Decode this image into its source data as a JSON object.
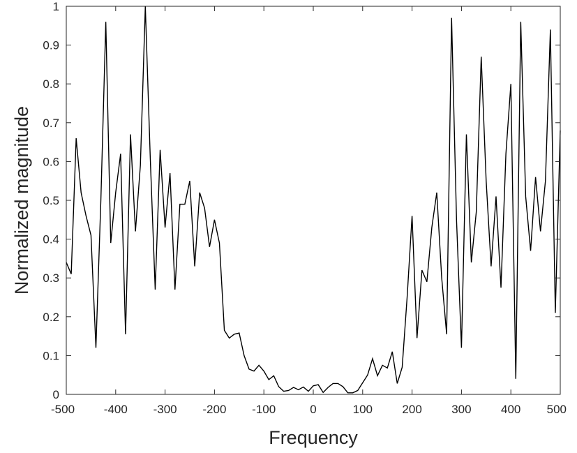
{
  "chart_data": {
    "type": "line",
    "title": "",
    "xlabel": "Frequency",
    "ylabel": "Normalized magnitude",
    "xlim": [
      -500,
      500
    ],
    "ylim": [
      0,
      1
    ],
    "xticks": [
      -500,
      -400,
      -300,
      -200,
      -100,
      0,
      100,
      200,
      300,
      400,
      500
    ],
    "yticks": [
      0,
      0.1,
      0.2,
      0.3,
      0.4,
      0.5,
      0.6,
      0.7,
      0.8,
      0.9,
      1
    ],
    "xtick_labels": [
      "-500",
      "-400",
      "-300",
      "-200",
      "-100",
      "0",
      "100",
      "200",
      "300",
      "400",
      "500"
    ],
    "ytick_labels": [
      "0",
      "0.1",
      "0.2",
      "0.3",
      "0.4",
      "0.5",
      "0.6",
      "0.7",
      "0.8",
      "0.9",
      "1"
    ],
    "grid": false,
    "line_color": "#000000",
    "series": [
      {
        "x": [
          -500,
          -490,
          -480,
          -470,
          -460,
          -450,
          -440,
          -430,
          -420,
          -410,
          -400,
          -390,
          -380,
          -370,
          -360,
          -350,
          -340,
          -330,
          -320,
          -310,
          -300,
          -290,
          -280,
          -270,
          -260,
          -250,
          -240,
          -230,
          -220,
          -210,
          -200,
          -190,
          -180,
          -170,
          -160,
          -150,
          -140,
          -130,
          -120,
          -110,
          -100,
          -90,
          -80,
          -70,
          -60,
          -50,
          -40,
          -30,
          -20,
          -10,
          0,
          10,
          20,
          30,
          40,
          50,
          60,
          70,
          80,
          90,
          100,
          110,
          120,
          130,
          140,
          150,
          160,
          170,
          180,
          190,
          200,
          210,
          220,
          230,
          240,
          250,
          260,
          270,
          280,
          290,
          300,
          310,
          320,
          330,
          340,
          350,
          360,
          370,
          380,
          390,
          400,
          410,
          420,
          430,
          440,
          450,
          460,
          470,
          480,
          490,
          500
        ],
        "values": [
          0.34,
          0.31,
          0.66,
          0.52,
          0.46,
          0.41,
          0.12,
          0.5,
          0.96,
          0.39,
          0.52,
          0.62,
          0.155,
          0.67,
          0.42,
          0.59,
          1.0,
          0.61,
          0.27,
          0.63,
          0.43,
          0.57,
          0.27,
          0.49,
          0.49,
          0.55,
          0.33,
          0.52,
          0.48,
          0.38,
          0.45,
          0.39,
          0.165,
          0.145,
          0.155,
          0.158,
          0.1,
          0.065,
          0.06,
          0.075,
          0.06,
          0.038,
          0.048,
          0.02,
          0.008,
          0.01,
          0.018,
          0.012,
          0.019,
          0.008,
          0.022,
          0.025,
          0.005,
          0.018,
          0.028,
          0.028,
          0.02,
          0.004,
          0.004,
          0.01,
          0.03,
          0.05,
          0.092,
          0.048,
          0.075,
          0.068,
          0.11,
          0.028,
          0.07,
          0.25,
          0.46,
          0.145,
          0.32,
          0.29,
          0.43,
          0.52,
          0.3,
          0.155,
          0.97,
          0.45,
          0.12,
          0.67,
          0.34,
          0.47,
          0.87,
          0.55,
          0.33,
          0.51,
          0.275,
          0.62,
          0.8,
          0.04,
          0.96,
          0.51,
          0.37,
          0.56,
          0.42,
          0.55,
          0.94,
          0.21,
          0.68
        ]
      }
    ]
  }
}
